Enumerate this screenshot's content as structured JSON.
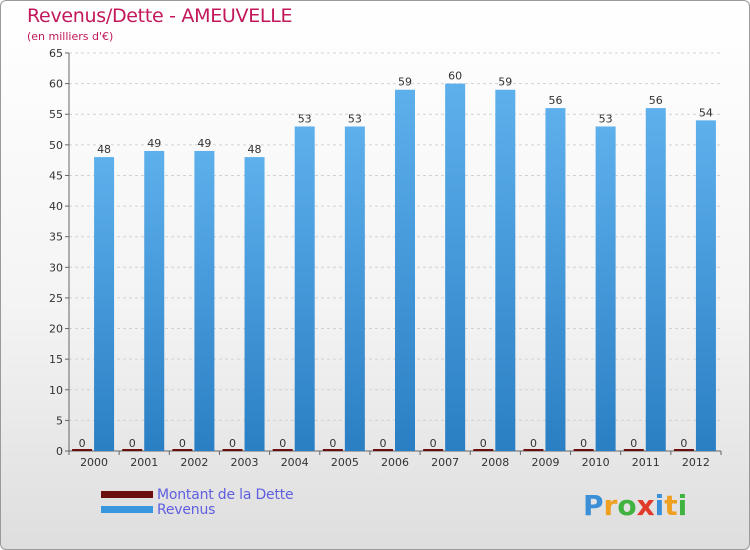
{
  "title": "Revenus/Dette - AMEUVELLE",
  "subtitle": "(en milliers d'€)",
  "brand": {
    "letters": [
      "P",
      "r",
      "o",
      "x",
      "i",
      "t",
      "i"
    ],
    "colors": [
      "#3a8fd6",
      "#f0a020",
      "#3fb23f",
      "#e23a2a",
      "#3a8fd6",
      "#f0a020",
      "#3fb23f"
    ]
  },
  "chart_data": {
    "type": "bar",
    "categories": [
      "2000",
      "2001",
      "2002",
      "2003",
      "2004",
      "2005",
      "2006",
      "2007",
      "2008",
      "2009",
      "2010",
      "2011",
      "2012"
    ],
    "series": [
      {
        "name": "Montant de la Dette",
        "values": [
          0,
          0,
          0,
          0,
          0,
          0,
          0,
          0,
          0,
          0,
          0,
          0,
          0
        ],
        "color": "#6b0f0f"
      },
      {
        "name": "Revenus",
        "values": [
          48,
          49,
          49,
          48,
          53,
          53,
          59,
          60,
          59,
          56,
          53,
          56,
          54
        ],
        "color": "#3a96dd"
      }
    ],
    "ylim": [
      0,
      65
    ],
    "yticks": [
      0,
      5,
      10,
      15,
      20,
      25,
      30,
      35,
      40,
      45,
      50,
      55,
      60,
      65
    ],
    "grid": true,
    "legend_position": "bottom-left"
  }
}
